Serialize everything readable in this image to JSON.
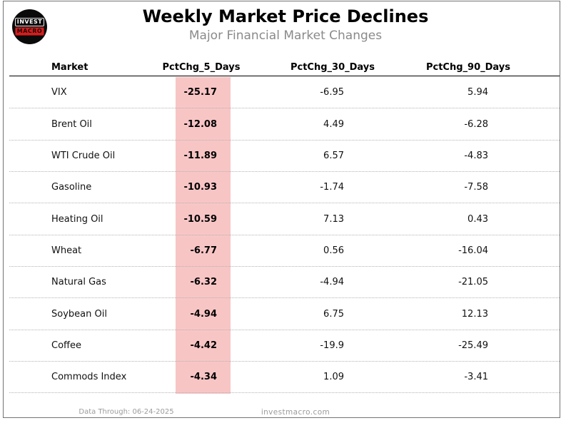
{
  "header": {
    "title": "Weekly Market Price Declines",
    "subtitle": "Major Financial Market Changes",
    "logo": {
      "line1": "INVEST",
      "line2": "MACRO"
    }
  },
  "chart_data": {
    "type": "table",
    "title": "Weekly Market Price Declines",
    "subtitle": "Major Financial Market Changes",
    "columns": [
      "Market",
      "PctChg_5_Days",
      "PctChg_30_Days",
      "PctChg_90_Days"
    ],
    "rows": [
      [
        "VIX",
        -25.17,
        -6.95,
        5.94
      ],
      [
        "Brent Oil",
        -12.08,
        4.49,
        -6.28
      ],
      [
        "WTI Crude Oil",
        -11.89,
        6.57,
        -4.83
      ],
      [
        "Gasoline",
        -10.93,
        -1.74,
        -7.58
      ],
      [
        "Heating Oil",
        -10.59,
        7.13,
        0.43
      ],
      [
        "Wheat",
        -6.77,
        0.56,
        -16.04
      ],
      [
        "Natural Gas",
        -6.32,
        -4.94,
        -21.05
      ],
      [
        "Soybean Oil",
        -4.94,
        6.75,
        12.13
      ],
      [
        "Coffee",
        -4.42,
        -19.9,
        -25.49
      ],
      [
        "Commods Index",
        -4.34,
        1.09,
        -3.41
      ]
    ],
    "highlighted_column": "PctChg_5_Days",
    "highlight_color": "#f8c5c5",
    "layout": {
      "grid": "dotted-row-separators",
      "header_rule": "solid-black"
    }
  },
  "footer": {
    "data_through": "Data Through: 06-24-2025",
    "website": "investmacro.com"
  }
}
